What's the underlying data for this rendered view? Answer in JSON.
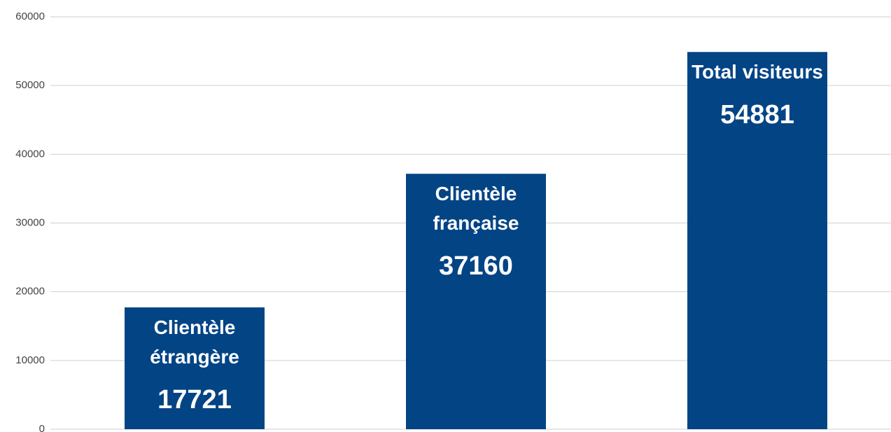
{
  "chart_data": {
    "type": "bar",
    "categories": [
      "Clientèle étrangère",
      "Clientèle française",
      "Total visiteurs"
    ],
    "values": [
      17721,
      37160,
      54881
    ],
    "color": "#034485",
    "ylim": [
      0,
      60000
    ],
    "yticks": [
      0,
      10000,
      20000,
      30000,
      40000,
      50000,
      60000
    ],
    "grid": true
  }
}
